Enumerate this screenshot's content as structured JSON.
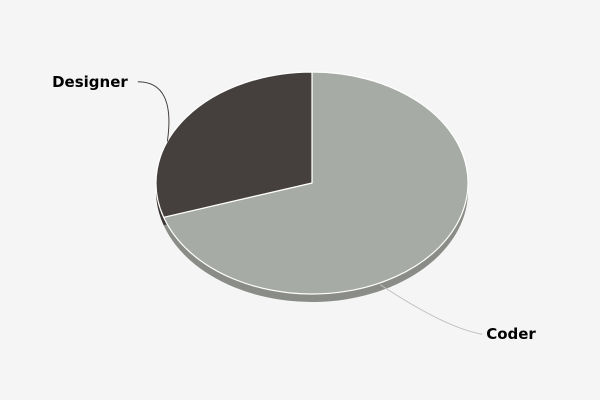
{
  "chart_data": {
    "type": "pie",
    "title": "",
    "categories": [
      "Coder",
      "Designer"
    ],
    "values": [
      70,
      30
    ],
    "colors": {
      "Coder": "#a7aba5",
      "Designer": "#45403d",
      "background": "#f5f5f5",
      "slice_border": "#ffffff",
      "connector": "#c0c0c0"
    },
    "legend": "none",
    "style": "3d"
  }
}
